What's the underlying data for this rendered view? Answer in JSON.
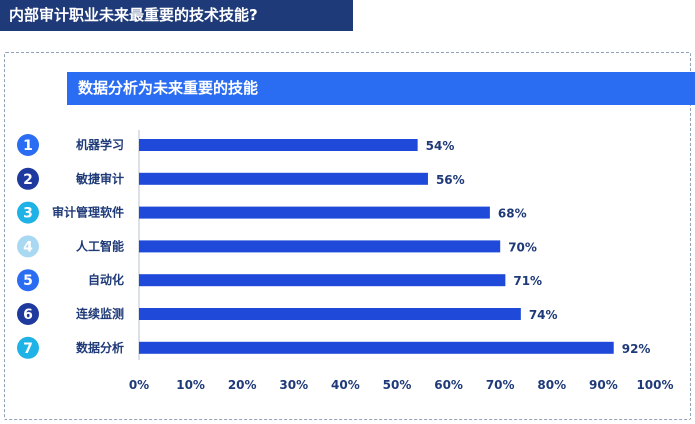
{
  "header": {
    "title": "内部审计职业未来最重要的技术技能?"
  },
  "panel": {
    "title": "数据分析为未来重要的技能"
  },
  "colors": {
    "header_bg": "#1f3a78",
    "panel_title_bg": "#2b6df2",
    "bar": "#1f49d8",
    "text": "#1f3a78",
    "badges": [
      "#2b6df2",
      "#1f3a9e",
      "#1fb2e6",
      "#a9d8f2",
      "#2b6df2",
      "#1f3a9e",
      "#1fb2e6"
    ]
  },
  "chart_data": {
    "type": "bar",
    "orientation": "horizontal",
    "title": "数据分析为未来重要的技能",
    "categories": [
      "机器学习",
      "敏捷审计",
      "审计管理软件",
      "人工智能",
      "自动化",
      "连续监测",
      "数据分析"
    ],
    "ranks": [
      "1",
      "2",
      "3",
      "4",
      "5",
      "6",
      "7"
    ],
    "values": [
      54,
      56,
      68,
      70,
      71,
      74,
      92
    ],
    "value_labels": [
      "54%",
      "56%",
      "68%",
      "70%",
      "71%",
      "74%",
      "92%"
    ],
    "xlim": [
      0,
      100
    ],
    "x_ticks": [
      "0%",
      "10%",
      "20%",
      "30%",
      "40%",
      "50%",
      "60%",
      "70%",
      "80%",
      "90%",
      "100%"
    ],
    "grid": false,
    "legend": "none"
  }
}
